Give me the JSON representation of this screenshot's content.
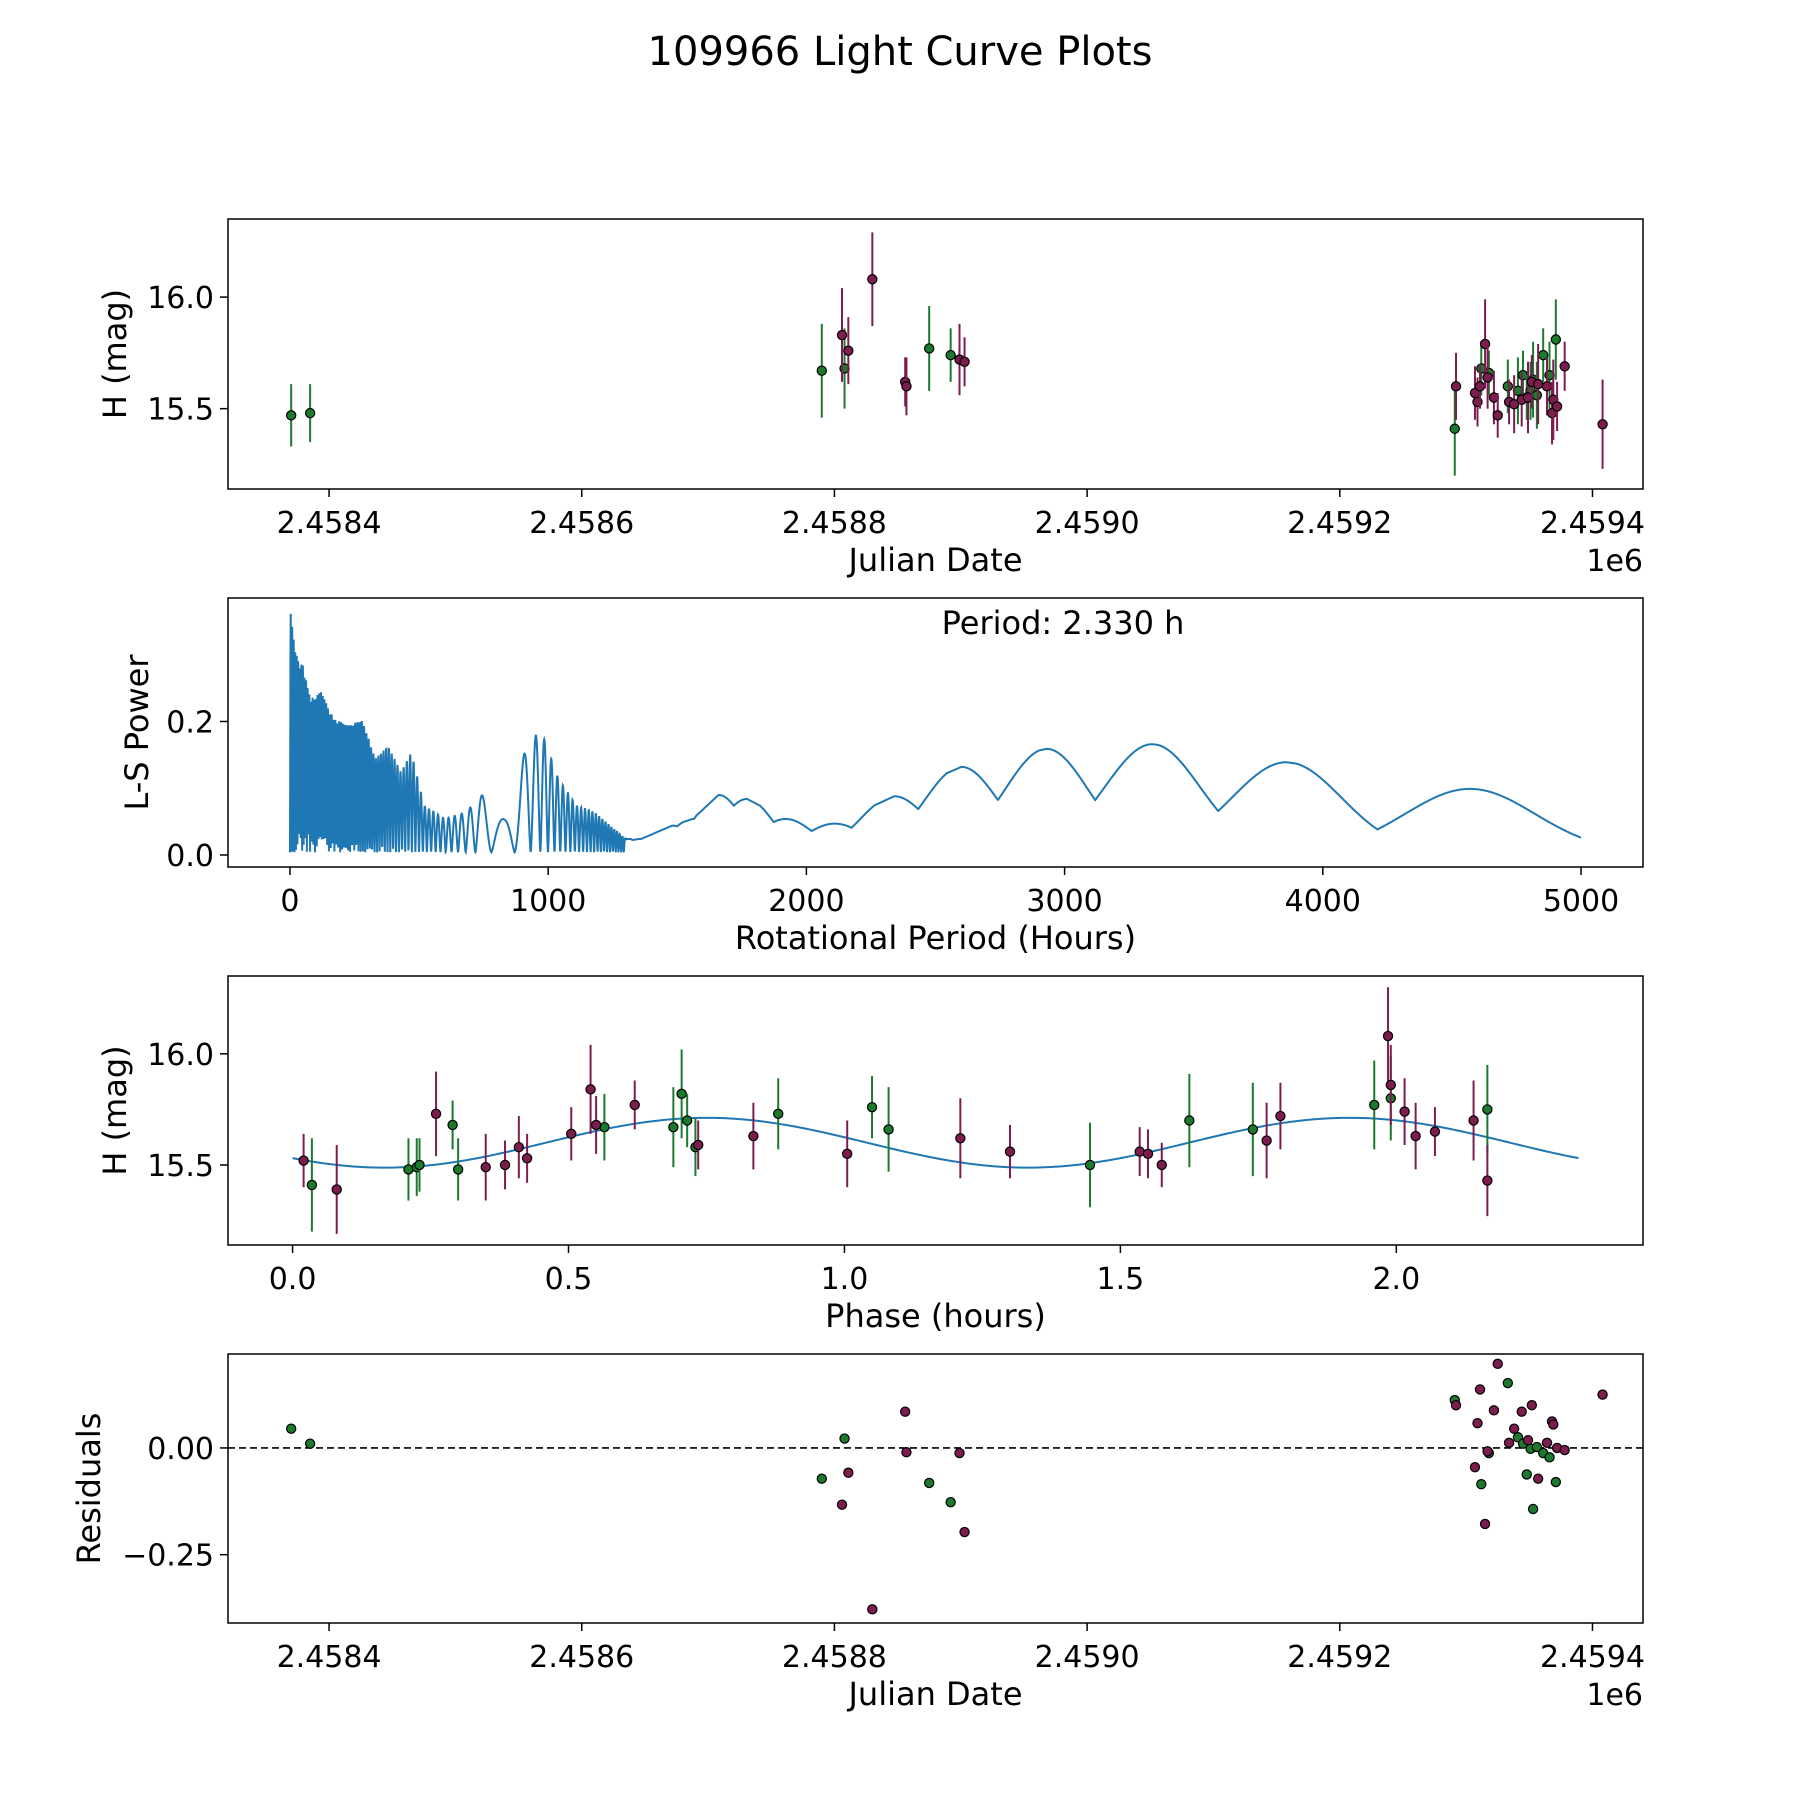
{
  "figure_title": "109966 Light Curve Plots",
  "colors": {
    "green": "#1b7a2e",
    "purple": "#7d1d4f",
    "periodogram": "#1f77b4",
    "fit": "#1f77b4"
  },
  "chart_data": [
    {
      "id": "lightcurve",
      "type": "scatter",
      "title": "",
      "xlabel": "Julian Date",
      "ylabel": "H (mag)",
      "offset_label": "1e6",
      "xlim": [
        2.45832,
        2.45944
      ],
      "ylim": [
        15.14,
        16.35
      ],
      "xticks": [
        2.4584,
        2.4586,
        2.4588,
        2.459,
        2.4592,
        2.4594
      ],
      "xtick_labels": [
        "2.4584",
        "2.4586",
        "2.4588",
        "2.4590",
        "2.4592",
        "2.4594"
      ],
      "yticks": [
        15.5,
        16.0
      ],
      "ytick_labels": [
        "15.5",
        "16.0"
      ],
      "series": [
        {
          "name": "green",
          "points": [
            [
              2.45837,
              15.47,
              0.14
            ],
            [
              2.458385,
              15.48,
              0.13
            ],
            [
              2.45879,
              15.67,
              0.21
            ],
            [
              2.458808,
              15.68,
              0.18
            ],
            [
              2.458875,
              15.77,
              0.19
            ],
            [
              2.458892,
              15.74,
              0.12
            ],
            [
              2.459291,
              15.41,
              0.21
            ],
            [
              2.459312,
              15.68,
              0.12
            ],
            [
              2.459318,
              15.66,
              0.1
            ],
            [
              2.459333,
              15.6,
              0.12
            ],
            [
              2.459341,
              15.58,
              0.15
            ],
            [
              2.459345,
              15.65,
              0.11
            ],
            [
              2.459348,
              15.55,
              0.1
            ],
            [
              2.459351,
              15.58,
              0.13
            ],
            [
              2.459353,
              15.63,
              0.17
            ],
            [
              2.459356,
              15.56,
              0.15
            ],
            [
              2.459361,
              15.74,
              0.12
            ],
            [
              2.459366,
              15.65,
              0.15
            ],
            [
              2.459371,
              15.81,
              0.18
            ]
          ]
        },
        {
          "name": "purple",
          "points": [
            [
              2.458806,
              15.83,
              0.21
            ],
            [
              2.458811,
              15.76,
              0.15
            ],
            [
              2.45883,
              16.08,
              0.21
            ],
            [
              2.458856,
              15.62,
              0.11
            ],
            [
              2.458857,
              15.6,
              0.13
            ],
            [
              2.458899,
              15.72,
              0.16
            ],
            [
              2.458903,
              15.71,
              0.11
            ],
            [
              2.459292,
              15.6,
              0.15
            ],
            [
              2.459307,
              15.57,
              0.12
            ],
            [
              2.459309,
              15.53,
              0.11
            ],
            [
              2.459311,
              15.6,
              0.1
            ],
            [
              2.459315,
              15.79,
              0.2
            ],
            [
              2.459317,
              15.64,
              0.14
            ],
            [
              2.459322,
              15.55,
              0.12
            ],
            [
              2.459325,
              15.47,
              0.1
            ],
            [
              2.459334,
              15.53,
              0.1
            ],
            [
              2.459338,
              15.52,
              0.13
            ],
            [
              2.459344,
              15.54,
              0.12
            ],
            [
              2.459349,
              15.55,
              0.16
            ],
            [
              2.459352,
              15.62,
              0.12
            ],
            [
              2.459357,
              15.61,
              0.18
            ],
            [
              2.459364,
              15.6,
              0.13
            ],
            [
              2.459368,
              15.48,
              0.14
            ],
            [
              2.459369,
              15.54,
              0.18
            ],
            [
              2.459372,
              15.51,
              0.11
            ],
            [
              2.459378,
              15.69,
              0.11
            ],
            [
              2.459408,
              15.43,
              0.2
            ]
          ]
        }
      ]
    },
    {
      "id": "periodogram",
      "type": "line",
      "title": "",
      "xlabel": "Rotational Period (Hours)",
      "ylabel": "L-S Power",
      "annotation": "Period: 2.330 h",
      "xlim": [
        -240,
        5240
      ],
      "ylim": [
        -0.018,
        0.385
      ],
      "xticks": [
        0,
        1000,
        2000,
        3000,
        4000,
        5000
      ],
      "xtick_labels": [
        "0",
        "1000",
        "2000",
        "3000",
        "4000",
        "5000"
      ],
      "yticks": [
        0.0,
        0.2
      ],
      "ytick_labels": [
        "0.0",
        "0.2"
      ],
      "peaks": [
        [
          0,
          0.367
        ],
        [
          20,
          0.3
        ],
        [
          50,
          0.28
        ],
        [
          80,
          0.23
        ],
        [
          120,
          0.24
        ],
        [
          170,
          0.2
        ],
        [
          230,
          0.19
        ],
        [
          280,
          0.2
        ],
        [
          330,
          0.14
        ],
        [
          380,
          0.16
        ],
        [
          430,
          0.12
        ],
        [
          470,
          0.15
        ],
        [
          520,
          0.07
        ],
        [
          560,
          0.06
        ],
        [
          600,
          0.05
        ],
        [
          680,
          0.06
        ],
        [
          730,
          0.08
        ],
        [
          780,
          0.1
        ],
        [
          830,
          0.1
        ],
        [
          880,
          0.12
        ],
        [
          930,
          0.17
        ],
        [
          975,
          0.18
        ],
        [
          1040,
          0.11
        ],
        [
          1110,
          0.07
        ],
        [
          1180,
          0.06
        ],
        [
          1240,
          0.04
        ],
        [
          1300,
          0.02
        ],
        [
          1360,
          0.02
        ],
        [
          1420,
          0.03
        ],
        [
          1480,
          0.04
        ],
        [
          1560,
          0.05
        ],
        [
          1660,
          0.086
        ],
        [
          1770,
          0.08
        ],
        [
          1920,
          0.05
        ],
        [
          2110,
          0.043
        ],
        [
          2340,
          0.084
        ],
        [
          2600,
          0.128
        ],
        [
          2930,
          0.155
        ],
        [
          3340,
          0.162
        ],
        [
          3860,
          0.135
        ],
        [
          4570,
          0.095
        ]
      ]
    },
    {
      "id": "phased",
      "type": "scatter",
      "title": "",
      "xlabel": "Phase (hours)",
      "ylabel": "H (mag)",
      "xlim": [
        -0.117,
        2.447
      ],
      "ylim": [
        15.14,
        16.35
      ],
      "xticks": [
        0.0,
        0.5,
        1.0,
        1.5,
        2.0
      ],
      "xtick_labels": [
        "0.0",
        "0.5",
        "1.0",
        "1.5",
        "2.0"
      ],
      "yticks": [
        15.5,
        16.0
      ],
      "ytick_labels": [
        "15.5",
        "16.0"
      ],
      "fit": {
        "period_hours": 2.33,
        "mean": 15.6,
        "amplitude": 0.112,
        "peaks_at": [
          0.75,
          1.915
        ],
        "x_range": [
          0,
          2.33
        ]
      },
      "series": [
        {
          "name": "green",
          "points": [
            [
              0.035,
              15.41,
              0.21
            ],
            [
              0.21,
              15.48,
              0.14
            ],
            [
              0.225,
              15.49,
              0.13
            ],
            [
              0.23,
              15.5,
              0.12
            ],
            [
              0.29,
              15.68,
              0.11
            ],
            [
              0.3,
              15.48,
              0.14
            ],
            [
              0.565,
              15.67,
              0.15
            ],
            [
              0.69,
              15.67,
              0.18
            ],
            [
              0.705,
              15.82,
              0.2
            ],
            [
              0.715,
              15.7,
              0.12
            ],
            [
              0.73,
              15.58,
              0.13
            ],
            [
              0.88,
              15.73,
              0.16
            ],
            [
              1.05,
              15.76,
              0.14
            ],
            [
              1.08,
              15.66,
              0.19
            ],
            [
              1.445,
              15.5,
              0.19
            ],
            [
              1.625,
              15.7,
              0.21
            ],
            [
              1.74,
              15.66,
              0.21
            ],
            [
              1.96,
              15.77,
              0.2
            ],
            [
              1.99,
              15.8,
              0.19
            ],
            [
              2.165,
              15.75,
              0.2
            ]
          ]
        },
        {
          "name": "purple",
          "points": [
            [
              0.02,
              15.52,
              0.12
            ],
            [
              0.08,
              15.39,
              0.2
            ],
            [
              0.26,
              15.73,
              0.19
            ],
            [
              0.35,
              15.49,
              0.15
            ],
            [
              0.385,
              15.5,
              0.11
            ],
            [
              0.41,
              15.58,
              0.14
            ],
            [
              0.425,
              15.53,
              0.11
            ],
            [
              0.505,
              15.64,
              0.12
            ],
            [
              0.54,
              15.84,
              0.2
            ],
            [
              0.55,
              15.68,
              0.13
            ],
            [
              0.62,
              15.77,
              0.11
            ],
            [
              0.735,
              15.59,
              0.11
            ],
            [
              0.835,
              15.63,
              0.15
            ],
            [
              1.005,
              15.55,
              0.15
            ],
            [
              1.21,
              15.62,
              0.18
            ],
            [
              1.3,
              15.56,
              0.12
            ],
            [
              1.535,
              15.56,
              0.11
            ],
            [
              1.55,
              15.55,
              0.11
            ],
            [
              1.575,
              15.5,
              0.1
            ],
            [
              1.765,
              15.61,
              0.17
            ],
            [
              1.79,
              15.72,
              0.15
            ],
            [
              1.985,
              16.08,
              0.22
            ],
            [
              1.99,
              15.86,
              0.18
            ],
            [
              2.015,
              15.74,
              0.15
            ],
            [
              2.035,
              15.63,
              0.15
            ],
            [
              2.07,
              15.65,
              0.11
            ],
            [
              2.14,
              15.7,
              0.18
            ],
            [
              2.165,
              15.43,
              0.16
            ]
          ]
        }
      ]
    },
    {
      "id": "residuals",
      "type": "scatter",
      "title": "",
      "xlabel": "Julian Date",
      "ylabel": "Residuals",
      "offset_label": "1e6",
      "xlim": [
        2.45832,
        2.45944
      ],
      "ylim": [
        -0.41,
        0.22
      ],
      "xticks": [
        2.4584,
        2.4586,
        2.4588,
        2.459,
        2.4592,
        2.4594
      ],
      "xtick_labels": [
        "2.4584",
        "2.4586",
        "2.4588",
        "2.4590",
        "2.4592",
        "2.4594"
      ],
      "yticks": [
        -0.25,
        0.0
      ],
      "ytick_labels": [
        "−0.25",
        "0.00"
      ],
      "zero_line": 0,
      "series": [
        {
          "name": "green",
          "points": [
            [
              2.45837,
              0.045
            ],
            [
              2.458385,
              0.01
            ],
            [
              2.45879,
              -0.072
            ],
            [
              2.458808,
              0.022
            ],
            [
              2.458875,
              -0.082
            ],
            [
              2.458892,
              -0.127
            ],
            [
              2.459291,
              0.112
            ],
            [
              2.459312,
              -0.085
            ],
            [
              2.459318,
              -0.012
            ],
            [
              2.459333,
              0.152
            ],
            [
              2.459341,
              0.025
            ],
            [
              2.459345,
              0.01
            ],
            [
              2.459348,
              -0.062
            ],
            [
              2.459351,
              -0.002
            ],
            [
              2.459353,
              -0.143
            ],
            [
              2.459356,
              0.002
            ],
            [
              2.459361,
              -0.012
            ],
            [
              2.459366,
              -0.022
            ],
            [
              2.459371,
              -0.08
            ]
          ]
        },
        {
          "name": "purple",
          "points": [
            [
              2.458806,
              -0.133
            ],
            [
              2.458811,
              -0.058
            ],
            [
              2.45883,
              -0.378
            ],
            [
              2.458856,
              0.085
            ],
            [
              2.458857,
              -0.01
            ],
            [
              2.458899,
              -0.012
            ],
            [
              2.458903,
              -0.197
            ],
            [
              2.459292,
              0.1
            ],
            [
              2.459307,
              -0.045
            ],
            [
              2.459309,
              0.058
            ],
            [
              2.459311,
              0.137
            ],
            [
              2.459315,
              -0.178
            ],
            [
              2.459317,
              -0.008
            ],
            [
              2.459322,
              0.088
            ],
            [
              2.459325,
              0.197
            ],
            [
              2.459334,
              0.012
            ],
            [
              2.459338,
              0.045
            ],
            [
              2.459344,
              0.085
            ],
            [
              2.459349,
              0.018
            ],
            [
              2.459352,
              0.1
            ],
            [
              2.459357,
              -0.072
            ],
            [
              2.459364,
              0.012
            ],
            [
              2.459368,
              0.062
            ],
            [
              2.459369,
              0.055
            ],
            [
              2.459372,
              0.0
            ],
            [
              2.459378,
              -0.005
            ],
            [
              2.459408,
              0.125
            ]
          ]
        }
      ]
    }
  ]
}
